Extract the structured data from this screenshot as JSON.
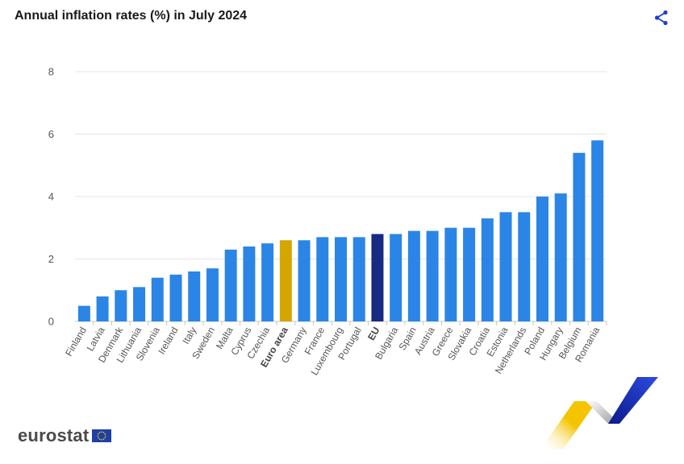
{
  "header": {
    "title": "Annual inflation rates (%) in July 2024"
  },
  "brand": {
    "logo_text": "eurostat"
  },
  "icons": {
    "share": "share-icon",
    "flag": "eu-flag-icon"
  },
  "colors": {
    "bar": "#2b85e6",
    "euro_area": "#d4a600",
    "eu": "#172a84",
    "grid": "#e4e4e4",
    "axis": "#c8c8c8"
  },
  "chart_data": {
    "type": "bar",
    "title": "Annual inflation rates (%) in July 2024",
    "xlabel": "",
    "ylabel": "",
    "ylim": [
      0,
      8
    ],
    "yticks": [
      0,
      2,
      4,
      6,
      8
    ],
    "grid": true,
    "categories": [
      "Finland",
      "Latvia",
      "Denmark",
      "Lithuania",
      "Slovenia",
      "Ireland",
      "Italy",
      "Sweden",
      "Malta",
      "Cyprus",
      "Czechia",
      "Euro area",
      "Germany",
      "France",
      "Luxembourg",
      "Portugal",
      "EU",
      "Bulgaria",
      "Spain",
      "Austria",
      "Greece",
      "Slovakia",
      "Croatia",
      "Estonia",
      "Netherlands",
      "Poland",
      "Hungary",
      "Belgium",
      "Romania"
    ],
    "values": [
      0.5,
      0.8,
      1.0,
      1.1,
      1.4,
      1.5,
      1.6,
      1.7,
      2.3,
      2.4,
      2.5,
      2.6,
      2.6,
      2.7,
      2.7,
      2.7,
      2.8,
      2.8,
      2.9,
      2.9,
      3.0,
      3.0,
      3.3,
      3.5,
      3.5,
      4.0,
      4.1,
      5.4,
      5.8
    ],
    "highlight": {
      "Euro area": "euro_area",
      "EU": "eu"
    }
  }
}
